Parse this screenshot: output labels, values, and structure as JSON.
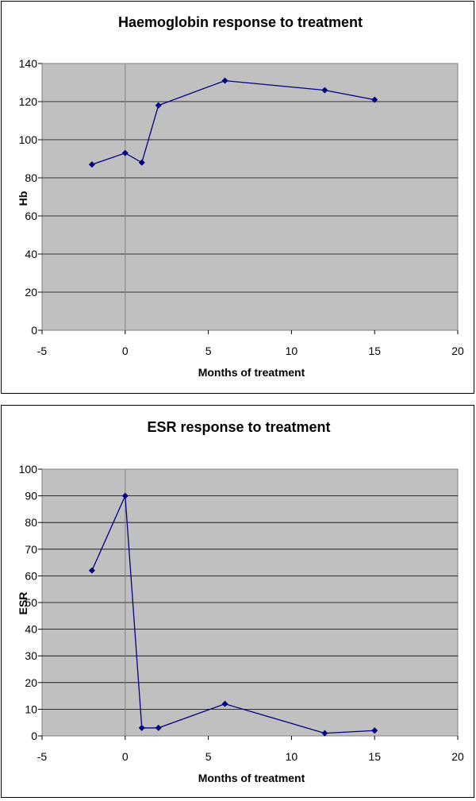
{
  "chart_data": [
    {
      "type": "scatter",
      "title": "Haemoglobin response to treatment",
      "xlabel": "Months of treatment",
      "ylabel": "Hb",
      "xlim": [
        -5,
        20
      ],
      "ylim": [
        0,
        140
      ],
      "x_ticks": [
        "-5",
        "0",
        "5",
        "10",
        "15",
        "20"
      ],
      "y_ticks": [
        "0",
        "20",
        "40",
        "60",
        "80",
        "100",
        "120",
        "140"
      ],
      "grid": "horizontal",
      "plot_background": "#c0c0c0",
      "series_color": "#000080",
      "series": [
        {
          "x": [
            -2,
            0,
            1,
            2,
            6,
            12,
            15
          ],
          "y": [
            87,
            93,
            88,
            118,
            131,
            126,
            121
          ]
        }
      ]
    },
    {
      "type": "scatter",
      "title": "ESR response to treatment",
      "xlabel": "Months of treatment",
      "ylabel": "ESR",
      "xlim": [
        -5,
        20
      ],
      "ylim": [
        0,
        100
      ],
      "x_ticks": [
        "-5",
        "0",
        "5",
        "10",
        "15",
        "20"
      ],
      "y_ticks": [
        "0",
        "10",
        "20",
        "30",
        "40",
        "50",
        "60",
        "70",
        "80",
        "90",
        "100"
      ],
      "grid": "horizontal",
      "plot_background": "#c0c0c0",
      "series_color": "#000080",
      "series": [
        {
          "x": [
            -2,
            0,
            1,
            2,
            6,
            12,
            15
          ],
          "y": [
            62,
            90,
            3,
            3,
            12,
            1,
            2
          ]
        }
      ]
    }
  ]
}
